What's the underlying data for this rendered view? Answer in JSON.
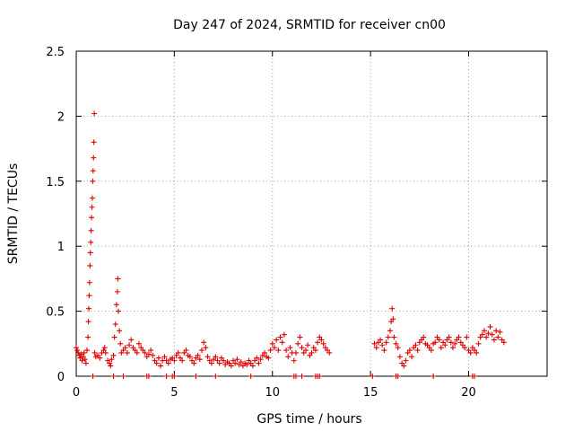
{
  "chart_data": {
    "type": "scatter",
    "title": "Day 247 of 2024, SRMTID for receiver cn00",
    "xlabel": "GPS time / hours",
    "ylabel": "SRMTID / TECUs",
    "xlim": [
      0,
      24
    ],
    "ylim": [
      0,
      2.5
    ],
    "xticks": [
      0,
      5,
      10,
      15,
      20
    ],
    "yticks": [
      0,
      0.5,
      1,
      1.5,
      2,
      2.5
    ],
    "xtick_labels": [
      "0",
      "5",
      "10",
      "15",
      "20"
    ],
    "ytick_labels": [
      "0",
      "0.5",
      "1",
      "1.5",
      "2",
      "2.5"
    ],
    "grid": true,
    "marker": "plus",
    "series": [
      {
        "name": "SRMTID",
        "color": "#e00000",
        "points": [
          [
            0.0,
            0.22
          ],
          [
            0.05,
            0.2
          ],
          [
            0.1,
            0.18
          ],
          [
            0.15,
            0.16
          ],
          [
            0.2,
            0.14
          ],
          [
            0.25,
            0.17
          ],
          [
            0.3,
            0.12
          ],
          [
            0.35,
            0.15
          ],
          [
            0.4,
            0.18
          ],
          [
            0.45,
            0.13
          ],
          [
            0.5,
            0.1
          ],
          [
            0.55,
            0.2
          ],
          [
            0.6,
            0.3
          ],
          [
            0.62,
            0.42
          ],
          [
            0.64,
            0.52
          ],
          [
            0.66,
            0.62
          ],
          [
            0.68,
            0.72
          ],
          [
            0.7,
            0.85
          ],
          [
            0.72,
            0.95
          ],
          [
            0.74,
            1.03
          ],
          [
            0.76,
            1.12
          ],
          [
            0.78,
            1.22
          ],
          [
            0.8,
            1.3
          ],
          [
            0.82,
            1.37
          ],
          [
            0.84,
            1.5
          ],
          [
            0.86,
            1.58
          ],
          [
            0.88,
            1.68
          ],
          [
            0.9,
            1.8
          ],
          [
            0.92,
            2.02
          ],
          [
            0.94,
            0.18
          ],
          [
            1.0,
            0.15
          ],
          [
            1.1,
            0.16
          ],
          [
            1.2,
            0.14
          ],
          [
            1.3,
            0.18
          ],
          [
            1.4,
            0.2
          ],
          [
            1.45,
            0.22
          ],
          [
            1.5,
            0.18
          ],
          [
            1.6,
            0.12
          ],
          [
            1.7,
            0.1
          ],
          [
            1.75,
            0.08
          ],
          [
            1.8,
            0.13
          ],
          [
            1.9,
            0.16
          ],
          [
            1.95,
            0.3
          ],
          [
            2.0,
            0.4
          ],
          [
            2.05,
            0.55
          ],
          [
            2.1,
            0.65
          ],
          [
            2.12,
            0.75
          ],
          [
            2.15,
            0.5
          ],
          [
            2.2,
            0.35
          ],
          [
            2.25,
            0.25
          ],
          [
            2.3,
            0.18
          ],
          [
            2.4,
            0.2
          ],
          [
            2.5,
            0.22
          ],
          [
            2.6,
            0.18
          ],
          [
            2.7,
            0.24
          ],
          [
            2.8,
            0.28
          ],
          [
            2.9,
            0.22
          ],
          [
            3.0,
            0.2
          ],
          [
            3.1,
            0.18
          ],
          [
            3.2,
            0.25
          ],
          [
            3.3,
            0.22
          ],
          [
            3.4,
            0.2
          ],
          [
            3.5,
            0.18
          ],
          [
            3.6,
            0.15
          ],
          [
            3.7,
            0.17
          ],
          [
            3.8,
            0.2
          ],
          [
            3.9,
            0.16
          ],
          [
            4.0,
            0.12
          ],
          [
            4.1,
            0.1
          ],
          [
            4.2,
            0.14
          ],
          [
            4.3,
            0.08
          ],
          [
            4.4,
            0.12
          ],
          [
            4.5,
            0.15
          ],
          [
            4.6,
            0.12
          ],
          [
            4.7,
            0.1
          ],
          [
            4.8,
            0.13
          ],
          [
            4.9,
            0.14
          ],
          [
            5.0,
            0.12
          ],
          [
            5.1,
            0.16
          ],
          [
            5.2,
            0.18
          ],
          [
            5.3,
            0.14
          ],
          [
            5.4,
            0.12
          ],
          [
            5.5,
            0.18
          ],
          [
            5.6,
            0.2
          ],
          [
            5.7,
            0.16
          ],
          [
            5.8,
            0.15
          ],
          [
            5.9,
            0.12
          ],
          [
            6.0,
            0.1
          ],
          [
            6.1,
            0.14
          ],
          [
            6.2,
            0.16
          ],
          [
            6.3,
            0.13
          ],
          [
            6.4,
            0.2
          ],
          [
            6.5,
            0.26
          ],
          [
            6.6,
            0.22
          ],
          [
            6.7,
            0.15
          ],
          [
            6.8,
            0.12
          ],
          [
            6.9,
            0.1
          ],
          [
            7.0,
            0.13
          ],
          [
            7.1,
            0.15
          ],
          [
            7.2,
            0.12
          ],
          [
            7.3,
            0.1
          ],
          [
            7.4,
            0.14
          ],
          [
            7.5,
            0.12
          ],
          [
            7.6,
            0.09
          ],
          [
            7.7,
            0.11
          ],
          [
            7.8,
            0.1
          ],
          [
            7.9,
            0.08
          ],
          [
            8.0,
            0.12
          ],
          [
            8.1,
            0.1
          ],
          [
            8.2,
            0.13
          ],
          [
            8.3,
            0.09
          ],
          [
            8.4,
            0.11
          ],
          [
            8.5,
            0.08
          ],
          [
            8.6,
            0.1
          ],
          [
            8.7,
            0.09
          ],
          [
            8.8,
            0.12
          ],
          [
            8.9,
            0.1
          ],
          [
            9.0,
            0.08
          ],
          [
            9.1,
            0.12
          ],
          [
            9.2,
            0.14
          ],
          [
            9.3,
            0.1
          ],
          [
            9.4,
            0.13
          ],
          [
            9.5,
            0.16
          ],
          [
            9.6,
            0.18
          ],
          [
            9.7,
            0.15
          ],
          [
            9.8,
            0.14
          ],
          [
            9.9,
            0.2
          ],
          [
            10.0,
            0.25
          ],
          [
            10.1,
            0.22
          ],
          [
            10.2,
            0.28
          ],
          [
            10.3,
            0.2
          ],
          [
            10.4,
            0.3
          ],
          [
            10.5,
            0.26
          ],
          [
            10.6,
            0.32
          ],
          [
            10.7,
            0.2
          ],
          [
            10.8,
            0.15
          ],
          [
            10.9,
            0.22
          ],
          [
            11.0,
            0.18
          ],
          [
            11.1,
            0.12
          ],
          [
            11.2,
            0.18
          ],
          [
            11.3,
            0.25
          ],
          [
            11.4,
            0.3
          ],
          [
            11.5,
            0.22
          ],
          [
            11.6,
            0.18
          ],
          [
            11.7,
            0.2
          ],
          [
            11.8,
            0.24
          ],
          [
            11.9,
            0.16
          ],
          [
            12.0,
            0.18
          ],
          [
            12.1,
            0.22
          ],
          [
            12.2,
            0.2
          ],
          [
            12.3,
            0.26
          ],
          [
            12.4,
            0.3
          ],
          [
            12.5,
            0.28
          ],
          [
            12.6,
            0.25
          ],
          [
            12.7,
            0.22
          ],
          [
            12.8,
            0.2
          ],
          [
            12.9,
            0.18
          ],
          [
            15.2,
            0.25
          ],
          [
            15.3,
            0.22
          ],
          [
            15.4,
            0.26
          ],
          [
            15.5,
            0.28
          ],
          [
            15.6,
            0.24
          ],
          [
            15.7,
            0.2
          ],
          [
            15.8,
            0.26
          ],
          [
            15.9,
            0.3
          ],
          [
            16.0,
            0.35
          ],
          [
            16.05,
            0.42
          ],
          [
            16.1,
            0.52
          ],
          [
            16.15,
            0.44
          ],
          [
            16.2,
            0.3
          ],
          [
            16.3,
            0.25
          ],
          [
            16.4,
            0.22
          ],
          [
            16.5,
            0.15
          ],
          [
            16.6,
            0.1
          ],
          [
            16.7,
            0.08
          ],
          [
            16.8,
            0.12
          ],
          [
            16.9,
            0.18
          ],
          [
            17.0,
            0.2
          ],
          [
            17.1,
            0.15
          ],
          [
            17.2,
            0.22
          ],
          [
            17.3,
            0.24
          ],
          [
            17.4,
            0.2
          ],
          [
            17.5,
            0.26
          ],
          [
            17.6,
            0.28
          ],
          [
            17.7,
            0.3
          ],
          [
            17.8,
            0.25
          ],
          [
            17.9,
            0.24
          ],
          [
            18.0,
            0.22
          ],
          [
            18.1,
            0.2
          ],
          [
            18.2,
            0.25
          ],
          [
            18.3,
            0.26
          ],
          [
            18.4,
            0.3
          ],
          [
            18.5,
            0.28
          ],
          [
            18.6,
            0.22
          ],
          [
            18.7,
            0.26
          ],
          [
            18.8,
            0.24
          ],
          [
            18.9,
            0.28
          ],
          [
            19.0,
            0.3
          ],
          [
            19.1,
            0.26
          ],
          [
            19.2,
            0.22
          ],
          [
            19.3,
            0.25
          ],
          [
            19.4,
            0.28
          ],
          [
            19.5,
            0.3
          ],
          [
            19.6,
            0.26
          ],
          [
            19.7,
            0.24
          ],
          [
            19.8,
            0.22
          ],
          [
            19.9,
            0.3
          ],
          [
            20.0,
            0.2
          ],
          [
            20.1,
            0.18
          ],
          [
            20.2,
            0.22
          ],
          [
            20.3,
            0.2
          ],
          [
            20.4,
            0.18
          ],
          [
            20.5,
            0.25
          ],
          [
            20.6,
            0.3
          ],
          [
            20.7,
            0.32
          ],
          [
            20.8,
            0.35
          ],
          [
            20.9,
            0.3
          ],
          [
            21.0,
            0.33
          ],
          [
            21.1,
            0.38
          ],
          [
            21.2,
            0.32
          ],
          [
            21.3,
            0.28
          ],
          [
            21.4,
            0.35
          ],
          [
            21.5,
            0.3
          ],
          [
            21.6,
            0.34
          ],
          [
            21.7,
            0.28
          ],
          [
            21.8,
            0.26
          ],
          [
            0.85,
            0.0
          ],
          [
            1.9,
            0.0
          ],
          [
            2.4,
            0.0
          ],
          [
            3.6,
            0.0
          ],
          [
            3.7,
            0.0
          ],
          [
            4.6,
            0.0
          ],
          [
            4.9,
            0.0
          ],
          [
            5.0,
            0.0
          ],
          [
            6.1,
            0.0
          ],
          [
            7.1,
            0.0
          ],
          [
            8.9,
            0.0
          ],
          [
            11.1,
            0.0
          ],
          [
            11.2,
            0.0
          ],
          [
            11.5,
            0.0
          ],
          [
            12.2,
            0.0
          ],
          [
            12.3,
            0.0
          ],
          [
            12.4,
            0.0
          ],
          [
            15.1,
            0.0
          ],
          [
            16.3,
            0.0
          ],
          [
            16.4,
            0.0
          ],
          [
            18.2,
            0.0
          ],
          [
            20.2,
            0.0
          ],
          [
            20.3,
            0.0
          ]
        ]
      }
    ]
  }
}
